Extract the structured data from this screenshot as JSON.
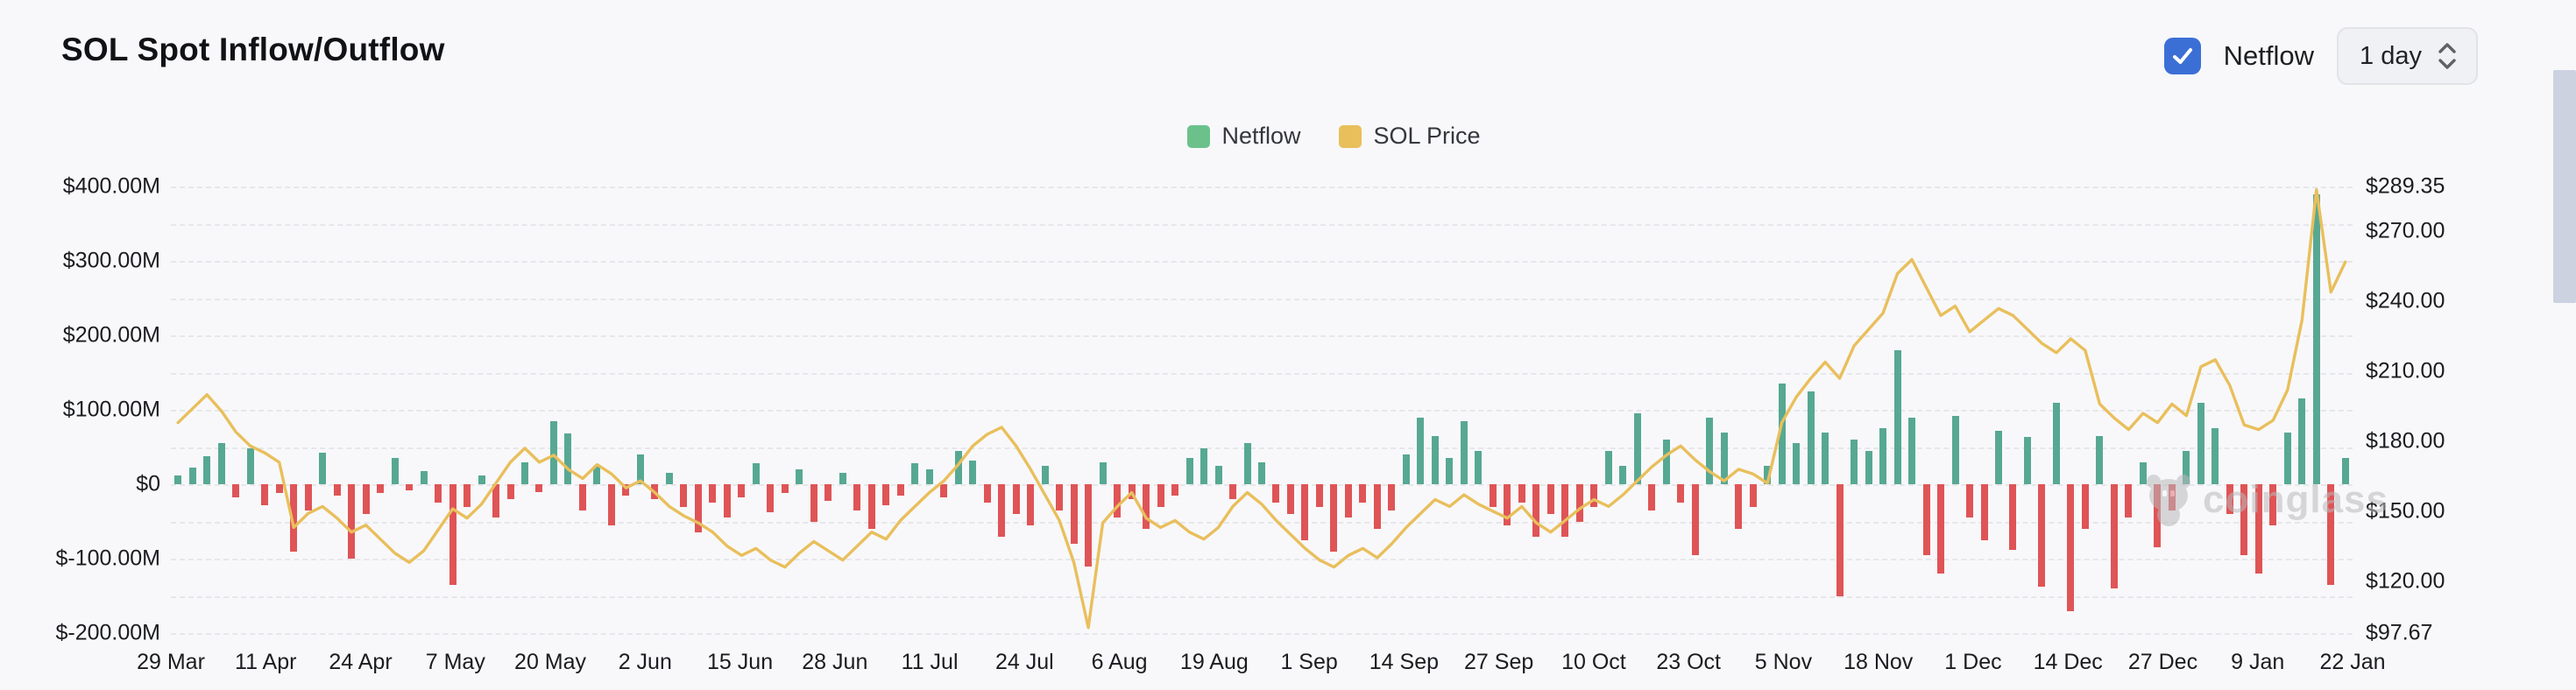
{
  "header": {
    "title": "SOL Spot Inflow/Outflow",
    "netflow_toggle_label": "Netflow",
    "netflow_toggle_checked": true,
    "interval_selector_value": "1 day"
  },
  "legend": [
    {
      "label": "Netflow",
      "color": "#6cc18b"
    },
    {
      "label": "SOL Price",
      "color": "#e9bf5c"
    }
  ],
  "watermark_text": "coinglass",
  "chart_data": {
    "type": "bar",
    "subtype": "bar+line combo, dual y-axis, daily from 29 Mar to 22 Jan",
    "x_tick_labels": [
      "29 Mar",
      "11 Apr",
      "24 Apr",
      "7 May",
      "20 May",
      "2 Jun",
      "15 Jun",
      "28 Jun",
      "11 Jul",
      "24 Jul",
      "6 Aug",
      "19 Aug",
      "1 Sep",
      "14 Sep",
      "27 Sep",
      "10 Oct",
      "23 Oct",
      "5 Nov",
      "18 Nov",
      "1 Dec",
      "14 Dec",
      "27 Dec",
      "9 Jan",
      "22 Jan"
    ],
    "y_left": {
      "name": "Netflow (USD)",
      "min": -200,
      "max": 400,
      "grid_step": 50,
      "ticks": [
        {
          "label": "$400.00M",
          "value": 400
        },
        {
          "label": "$300.00M",
          "value": 300
        },
        {
          "label": "$200.00M",
          "value": 200
        },
        {
          "label": "$100.00M",
          "value": 100
        },
        {
          "label": "$0",
          "value": 0
        },
        {
          "label": "$-100.00M",
          "value": -100
        },
        {
          "label": "$-200.00M",
          "value": -200
        }
      ]
    },
    "y_right": {
      "name": "SOL Price (USD)",
      "min": 97.67,
      "max": 289.35,
      "ticks": [
        {
          "label": "$289.35",
          "value": 289.35
        },
        {
          "label": "$270.00",
          "value": 270
        },
        {
          "label": "$240.00",
          "value": 240
        },
        {
          "label": "$210.00",
          "value": 210
        },
        {
          "label": "$180.00",
          "value": 180
        },
        {
          "label": "$150.00",
          "value": 150
        },
        {
          "label": "$120.00",
          "value": 120
        },
        {
          "label": "$97.67",
          "value": 97.67
        }
      ]
    },
    "grid": "horizontal dashed",
    "legend_position": "top center",
    "series": [
      {
        "name": "Netflow",
        "type": "bar",
        "axis": "left",
        "unit": "USD millions",
        "color_positive": "#57a893",
        "color_negative": "#df5456",
        "sample_interval_days": 2,
        "values": [
          12,
          22,
          38,
          55,
          -18,
          48,
          -28,
          -12,
          -90,
          -35,
          42,
          -15,
          -100,
          -40,
          -12,
          35,
          -8,
          18,
          -25,
          -135,
          -30,
          12,
          -45,
          -20,
          30,
          -10,
          85,
          68,
          -35,
          25,
          -55,
          -15,
          40,
          -20,
          15,
          -30,
          -65,
          -25,
          -45,
          -18,
          28,
          -38,
          -12,
          20,
          -50,
          -22,
          15,
          -35,
          -60,
          -28,
          -15,
          28,
          20,
          -18,
          45,
          32,
          -25,
          -70,
          -40,
          -55,
          25,
          -35,
          -80,
          -110,
          30,
          -45,
          -20,
          -60,
          -30,
          -15,
          35,
          48,
          25,
          -20,
          55,
          30,
          -25,
          -40,
          -75,
          -30,
          -90,
          -45,
          -25,
          -60,
          -35,
          40,
          90,
          65,
          35,
          85,
          45,
          -30,
          -55,
          -25,
          -70,
          -40,
          -70,
          -50,
          -30,
          45,
          25,
          95,
          -35,
          60,
          -25,
          -95,
          90,
          70,
          -60,
          -30,
          25,
          135,
          55,
          125,
          70,
          -150,
          60,
          45,
          75,
          180,
          90,
          -95,
          -120,
          92,
          -45,
          -75,
          72,
          -88,
          64,
          -138,
          110,
          -170,
          -60,
          65,
          -140,
          -45,
          30,
          -85,
          -35,
          45,
          110,
          75,
          -40,
          -95,
          -120,
          -55,
          70,
          115,
          390,
          -135,
          35
        ]
      },
      {
        "name": "SOL Price",
        "type": "line",
        "axis": "right",
        "unit": "USD",
        "color": "#e9bf5c",
        "sample_interval_days": 2,
        "values": [
          188,
          194,
          200,
          193,
          184,
          178,
          175,
          171,
          143,
          149,
          152,
          147,
          141,
          144,
          138,
          132,
          128,
          133,
          142,
          151,
          147,
          153,
          162,
          171,
          177,
          171,
          174,
          168,
          164,
          170,
          166,
          160,
          163,
          158,
          152,
          148,
          145,
          141,
          135,
          131,
          134,
          129,
          126,
          132,
          137,
          133,
          129,
          135,
          141,
          138,
          146,
          152,
          158,
          163,
          170,
          178,
          183,
          186,
          178,
          168,
          157,
          146,
          128,
          100,
          145,
          152,
          158,
          147,
          143,
          146,
          141,
          138,
          143,
          152,
          158,
          153,
          146,
          140,
          134,
          129,
          126,
          131,
          134,
          130,
          136,
          143,
          149,
          155,
          152,
          157,
          153,
          150,
          147,
          152,
          145,
          141,
          146,
          151,
          155,
          152,
          157,
          163,
          169,
          174,
          178,
          172,
          167,
          163,
          168,
          166,
          162,
          188,
          199,
          207,
          214,
          207,
          221,
          228,
          235,
          252,
          258,
          246,
          234,
          238,
          227,
          232,
          237,
          234,
          228,
          222,
          218,
          224,
          219,
          196,
          190,
          185,
          192,
          188,
          196,
          191,
          212,
          215,
          204,
          187,
          185,
          189,
          202,
          232,
          288,
          244,
          257
        ]
      }
    ]
  }
}
